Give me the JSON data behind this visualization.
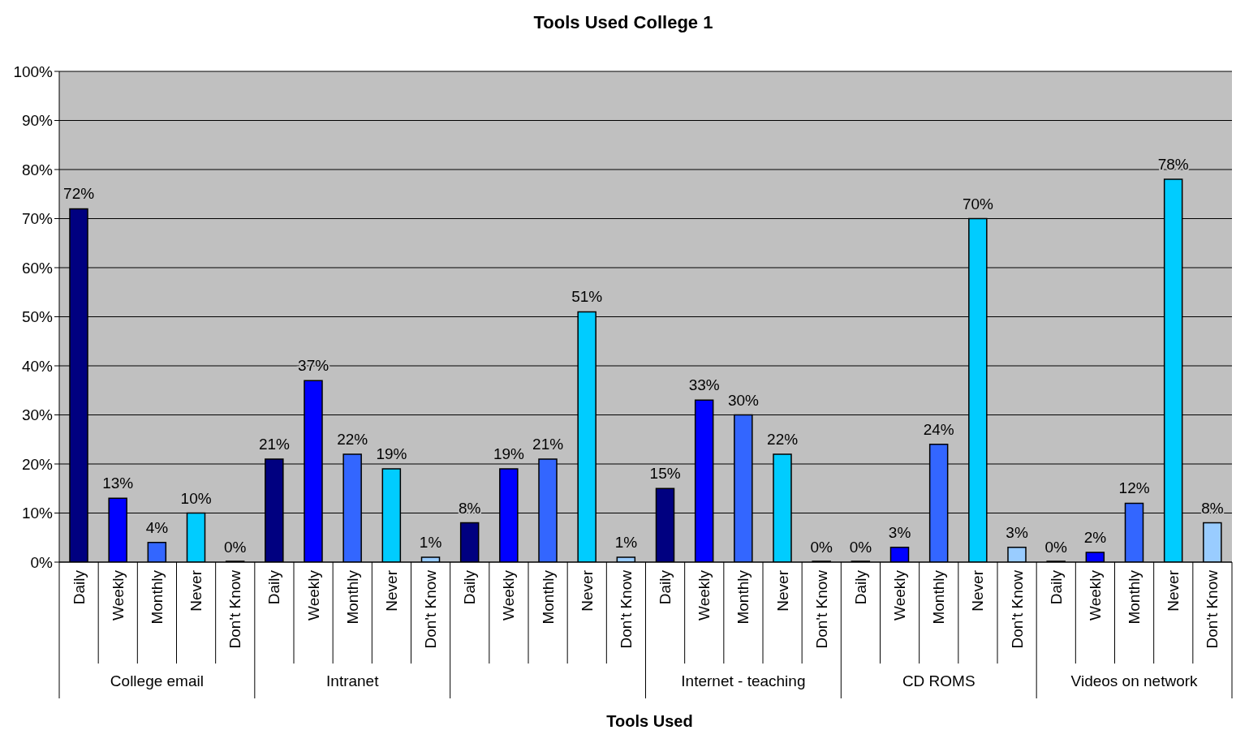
{
  "chart_data": {
    "type": "bar",
    "title": "Tools Used College 1",
    "xlabel": "Tools Used",
    "categories": [
      "College email",
      "Intranet",
      null,
      "Internet - teaching",
      "CD ROMS",
      "Videos on network"
    ],
    "series": [
      {
        "name": "Daily",
        "color": "#000080",
        "values": [
          72,
          21,
          8,
          15,
          0,
          0
        ],
        "value_labels": [
          "72%",
          "21%",
          "8%",
          "15%",
          "0%",
          "0%"
        ]
      },
      {
        "name": "Weekly",
        "color": "#0000ff",
        "values": [
          13,
          37,
          19,
          33,
          3,
          2
        ],
        "value_labels": [
          "13%",
          "37%",
          "19%",
          "33%",
          "3%",
          "2%"
        ]
      },
      {
        "name": "Monthly",
        "color": "#3366ff",
        "values": [
          4,
          22,
          21,
          30,
          24,
          12
        ],
        "value_labels": [
          "4%",
          "22%",
          "21%",
          "30%",
          "24%",
          "12%"
        ]
      },
      {
        "name": "Never",
        "color": "#00ccff",
        "values": [
          10,
          19,
          51,
          22,
          70,
          78
        ],
        "value_labels": [
          "10%",
          "19%",
          "51%",
          "22%",
          "70%",
          "78%"
        ]
      },
      {
        "name": "Don't Know",
        "color": "#99ccff",
        "values": [
          0,
          1,
          1,
          0,
          3,
          8
        ],
        "value_labels": [
          "0%",
          "1%",
          "1%",
          "0%",
          "3%",
          "8%"
        ]
      }
    ],
    "ylim": [
      0,
      100
    ],
    "yticks": [
      {
        "value": 0,
        "label": "0%"
      },
      {
        "value": 10,
        "label": "10%"
      },
      {
        "value": 20,
        "label": "20%"
      },
      {
        "value": 30,
        "label": "30%"
      },
      {
        "value": 40,
        "label": "40%"
      },
      {
        "value": 50,
        "label": "50%"
      },
      {
        "value": 60,
        "label": "60%"
      },
      {
        "value": 70,
        "label": "70%"
      },
      {
        "value": 80,
        "label": "80%"
      },
      {
        "value": 90,
        "label": "90%"
      },
      {
        "value": 100,
        "label": "100%"
      }
    ],
    "grid": "y",
    "legend": false
  }
}
